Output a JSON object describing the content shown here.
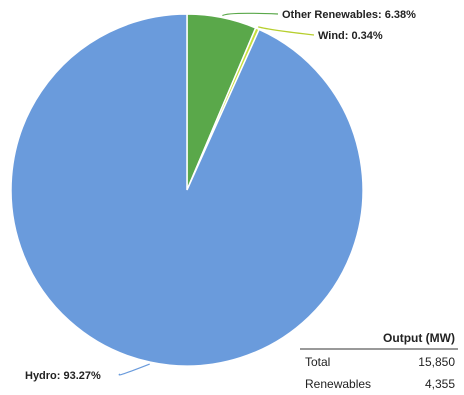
{
  "chart_data": {
    "type": "pie",
    "slices": [
      {
        "name": "Other Renewables",
        "value": 6.38,
        "label": "Other Renewables: 6.38%",
        "color": "#5aa84a"
      },
      {
        "name": "Wind",
        "value": 0.34,
        "label": "Wind: 0.34%",
        "color": "#c7df3e"
      },
      {
        "name": "Hydro",
        "value": 93.27,
        "label": "Hydro: 93.27%",
        "color": "#6a9bdc"
      }
    ]
  },
  "table": {
    "header": "Output (MW)",
    "rows": [
      {
        "label": "Total",
        "value": "15,850"
      },
      {
        "label": "Renewables",
        "value": "4,355"
      }
    ]
  }
}
